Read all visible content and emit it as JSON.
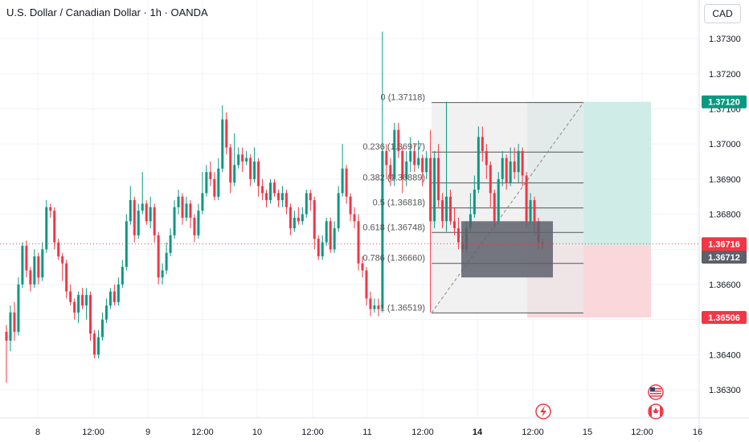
{
  "header": {
    "symbol_title": "U.S. Dollar / Canadian Dollar · 1h · OANDA",
    "currency_button": "CAD"
  },
  "colors": {
    "up": "#089981",
    "down": "#f23645",
    "target_zone": "#cfece6",
    "stop_zone": "#f9d7db",
    "fib_zone": "#ebebeb",
    "fib_line": "#555555",
    "current_price_line": "#f23645"
  },
  "icons": [
    "lightning-event-icon",
    "us-flag-icon",
    "canada-flag-icon"
  ],
  "chart_data": {
    "type": "candlestick",
    "title": "U.S. Dollar / Canadian Dollar · 1h · OANDA",
    "y_axis": {
      "ticks": [
        "1.37300",
        "1.37200",
        "1.37100",
        "1.37000",
        "1.36900",
        "1.36800",
        "1.36700",
        "1.36600",
        "1.36500",
        "1.36400",
        "1.36300"
      ],
      "range": [
        1.3622,
        1.3741
      ]
    },
    "x_axis": {
      "ticks": [
        {
          "label": "8",
          "bold": false
        },
        {
          "label": "12:00",
          "bold": false
        },
        {
          "label": "9",
          "bold": false
        },
        {
          "label": "12:00",
          "bold": false
        },
        {
          "label": "10",
          "bold": false
        },
        {
          "label": "12:00",
          "bold": false
        },
        {
          "label": "11",
          "bold": false
        },
        {
          "label": "12:00",
          "bold": false
        },
        {
          "label": "14",
          "bold": true
        },
        {
          "label": "12:00",
          "bold": false
        },
        {
          "label": "15",
          "bold": false
        },
        {
          "label": "12:00",
          "bold": false
        },
        {
          "label": "16",
          "bold": false
        }
      ]
    },
    "price_labels": [
      {
        "text": "1.37120",
        "value": 1.3712,
        "kind": "target"
      },
      {
        "text": "1.36716",
        "text2": "31:00",
        "value": 1.36716,
        "kind": "last"
      },
      {
        "text": "1.36712",
        "value": 1.36712,
        "kind": "position"
      },
      {
        "text": "1.36506",
        "value": 1.36506,
        "kind": "stop"
      }
    ],
    "fib_levels": [
      {
        "label": "0 (1.37118)",
        "value": 1.37118
      },
      {
        "label": "0.236 (1.36977)",
        "value": 1.36977
      },
      {
        "label": "0.382 (1.36889)",
        "value": 1.36889
      },
      {
        "label": "0.5 (1.36818)",
        "value": 1.36818
      },
      {
        "label": "0.618 (1.36748)",
        "value": 1.36748
      },
      {
        "label": "0.786 (1.36660)",
        "value": 1.3666
      },
      {
        "label": "1 (1.36519)",
        "value": 1.36519
      }
    ],
    "position": {
      "entry": 1.36712,
      "target": 1.3712,
      "stop": 1.36506
    },
    "last_price": 1.36716,
    "candles": [
      [
        1.36465,
        1.3644,
        1.36485,
        1.3632
      ],
      [
        1.3644,
        1.3652,
        1.3654,
        1.3641
      ],
      [
        1.3652,
        1.36465,
        1.3655,
        1.3644
      ],
      [
        1.36465,
        1.366,
        1.3662,
        1.36455
      ],
      [
        1.366,
        1.3671,
        1.3672,
        1.3659
      ],
      [
        1.3671,
        1.3664,
        1.36725,
        1.3662
      ],
      [
        1.3664,
        1.366,
        1.3665,
        1.3658
      ],
      [
        1.366,
        1.3668,
        1.367,
        1.3659
      ],
      [
        1.3668,
        1.3662,
        1.3669,
        1.366
      ],
      [
        1.3662,
        1.367,
        1.3672,
        1.3661
      ],
      [
        1.367,
        1.3682,
        1.3684,
        1.3669
      ],
      [
        1.3682,
        1.3681,
        1.3683,
        1.3679
      ],
      [
        1.3681,
        1.3672,
        1.3682,
        1.367
      ],
      [
        1.3672,
        1.3668,
        1.3673,
        1.3667
      ],
      [
        1.3668,
        1.3666,
        1.3669,
        1.3661
      ],
      [
        1.3666,
        1.3658,
        1.3667,
        1.3656
      ],
      [
        1.3658,
        1.3655,
        1.366,
        1.3654
      ],
      [
        1.3655,
        1.3652,
        1.3656,
        1.365
      ],
      [
        1.3652,
        1.3657,
        1.3658,
        1.3649
      ],
      [
        1.3657,
        1.3654,
        1.3659,
        1.3653
      ],
      [
        1.3654,
        1.3657,
        1.3659,
        1.365
      ],
      [
        1.3657,
        1.3646,
        1.3658,
        1.3644
      ],
      [
        1.3646,
        1.364,
        1.3647,
        1.3639
      ],
      [
        1.364,
        1.3645,
        1.3647,
        1.3639
      ],
      [
        1.3645,
        1.365,
        1.3652,
        1.3644
      ],
      [
        1.365,
        1.3654,
        1.3656,
        1.3649
      ],
      [
        1.3654,
        1.3658,
        1.3659,
        1.3653
      ],
      [
        1.3658,
        1.3655,
        1.366,
        1.3654
      ],
      [
        1.3655,
        1.366,
        1.3662,
        1.3654
      ],
      [
        1.366,
        1.3665,
        1.3667,
        1.3659
      ],
      [
        1.3665,
        1.3678,
        1.368,
        1.3664
      ],
      [
        1.3678,
        1.3684,
        1.3688,
        1.3677
      ],
      [
        1.3684,
        1.3674,
        1.3685,
        1.3672
      ],
      [
        1.3674,
        1.3681,
        1.3683,
        1.3673
      ],
      [
        1.3681,
        1.3683,
        1.3692,
        1.368
      ],
      [
        1.3683,
        1.3678,
        1.3684,
        1.3677
      ],
      [
        1.3678,
        1.3682,
        1.3685,
        1.3676
      ],
      [
        1.3682,
        1.3674,
        1.3683,
        1.3672
      ],
      [
        1.3674,
        1.3662,
        1.3675,
        1.366
      ],
      [
        1.3662,
        1.3664,
        1.3666,
        1.366
      ],
      [
        1.3664,
        1.3669,
        1.3672,
        1.3663
      ],
      [
        1.3669,
        1.3674,
        1.3676,
        1.3668
      ],
      [
        1.3674,
        1.3682,
        1.3684,
        1.3673
      ],
      [
        1.3682,
        1.3685,
        1.3687,
        1.368
      ],
      [
        1.3685,
        1.3679,
        1.3686,
        1.3677
      ],
      [
        1.3679,
        1.3683,
        1.3685,
        1.3678
      ],
      [
        1.3683,
        1.3679,
        1.3684,
        1.3676
      ],
      [
        1.3679,
        1.3674,
        1.368,
        1.3672
      ],
      [
        1.3674,
        1.3681,
        1.3683,
        1.3673
      ],
      [
        1.3681,
        1.3686,
        1.3692,
        1.368
      ],
      [
        1.3686,
        1.3692,
        1.3694,
        1.3685
      ],
      [
        1.3692,
        1.369,
        1.3695,
        1.3688
      ],
      [
        1.369,
        1.3685,
        1.3692,
        1.3684
      ],
      [
        1.3685,
        1.3693,
        1.3696,
        1.3684
      ],
      [
        1.3693,
        1.3707,
        1.3711,
        1.3692
      ],
      [
        1.3707,
        1.3699,
        1.3709,
        1.3697
      ],
      [
        1.3699,
        1.3689,
        1.37,
        1.3686
      ],
      [
        1.3689,
        1.3694,
        1.3703,
        1.3688
      ],
      [
        1.3694,
        1.3697,
        1.3699,
        1.3693
      ],
      [
        1.3697,
        1.3695,
        1.3699,
        1.3692
      ],
      [
        1.3695,
        1.3696,
        1.3698,
        1.3694
      ],
      [
        1.3696,
        1.369,
        1.3697,
        1.3688
      ],
      [
        1.369,
        1.3695,
        1.3699,
        1.3689
      ],
      [
        1.3695,
        1.3688,
        1.3696,
        1.3685
      ],
      [
        1.3688,
        1.3686,
        1.369,
        1.3684
      ],
      [
        1.3686,
        1.3684,
        1.3687,
        1.3682
      ],
      [
        1.3684,
        1.3689,
        1.369,
        1.3683
      ],
      [
        1.3689,
        1.3686,
        1.369,
        1.3685
      ],
      [
        1.3686,
        1.3684,
        1.3687,
        1.3682
      ],
      [
        1.3684,
        1.3686,
        1.3688,
        1.3682
      ],
      [
        1.3686,
        1.3682,
        1.3687,
        1.368
      ],
      [
        1.3682,
        1.3676,
        1.3683,
        1.3674
      ],
      [
        1.3676,
        1.3679,
        1.3681,
        1.3675
      ],
      [
        1.3679,
        1.3678,
        1.3682,
        1.3677
      ],
      [
        1.3678,
        1.368,
        1.3682,
        1.3677
      ],
      [
        1.368,
        1.3686,
        1.3687,
        1.3679
      ],
      [
        1.3686,
        1.3684,
        1.3687,
        1.3681
      ],
      [
        1.3684,
        1.3673,
        1.3685,
        1.367
      ],
      [
        1.3673,
        1.3668,
        1.3674,
        1.3667
      ],
      [
        1.3668,
        1.3672,
        1.3674,
        1.3667
      ],
      [
        1.3672,
        1.3678,
        1.3679,
        1.3671
      ],
      [
        1.3678,
        1.367,
        1.3679,
        1.3669
      ],
      [
        1.367,
        1.3676,
        1.3678,
        1.3669
      ],
      [
        1.3676,
        1.3686,
        1.3688,
        1.3675
      ],
      [
        1.3686,
        1.3693,
        1.37,
        1.3685
      ],
      [
        1.3693,
        1.3685,
        1.3694,
        1.3683
      ],
      [
        1.3685,
        1.368,
        1.3686,
        1.3678
      ],
      [
        1.368,
        1.3678,
        1.3682,
        1.3676
      ],
      [
        1.3678,
        1.3666,
        1.368,
        1.3664
      ],
      [
        1.3666,
        1.3664,
        1.3668,
        1.3662
      ],
      [
        1.3664,
        1.3656,
        1.3665,
        1.3654
      ],
      [
        1.3656,
        1.3653,
        1.3658,
        1.3651
      ],
      [
        1.3653,
        1.3654,
        1.3656,
        1.3652
      ],
      [
        1.3654,
        1.3653,
        1.3656,
        1.3651
      ],
      [
        1.3653,
        1.3698,
        1.3732,
        1.3652
      ],
      [
        1.3698,
        1.3694,
        1.37,
        1.369
      ],
      [
        1.3694,
        1.369,
        1.3696,
        1.3688
      ],
      [
        1.369,
        1.3704,
        1.3706,
        1.3688
      ],
      [
        1.3704,
        1.3698,
        1.3706,
        1.3696
      ],
      [
        1.3698,
        1.369,
        1.3699,
        1.3686
      ],
      [
        1.369,
        1.3695,
        1.3698,
        1.3688
      ],
      [
        1.3695,
        1.3698,
        1.3702,
        1.3692
      ],
      [
        1.3698,
        1.3694,
        1.37,
        1.3692
      ],
      [
        1.3694,
        1.3696,
        1.3701,
        1.3693
      ],
      [
        1.3696,
        1.3692,
        1.3697,
        1.3688
      ],
      [
        1.3692,
        1.3696,
        1.3698,
        1.369
      ],
      [
        1.3696,
        1.3678,
        1.3704,
        1.3652
      ],
      [
        1.3678,
        1.3696,
        1.3698,
        1.3676
      ],
      [
        1.3696,
        1.3684,
        1.37,
        1.3682
      ],
      [
        1.3684,
        1.3678,
        1.3686,
        1.3676
      ],
      [
        1.3678,
        1.3685,
        1.3712,
        1.3675
      ],
      [
        1.3685,
        1.3678,
        1.3687,
        1.3677
      ],
      [
        1.3678,
        1.3676,
        1.3682,
        1.3674
      ],
      [
        1.3676,
        1.3672,
        1.3679,
        1.367
      ],
      [
        1.3672,
        1.367,
        1.3674,
        1.3669
      ],
      [
        1.367,
        1.3676,
        1.3678,
        1.3669
      ],
      [
        1.3676,
        1.368,
        1.3686,
        1.3675
      ],
      [
        1.368,
        1.3687,
        1.3691,
        1.3679
      ],
      [
        1.3687,
        1.3702,
        1.3705,
        1.3686
      ],
      [
        1.3702,
        1.3698,
        1.3705,
        1.3695
      ],
      [
        1.3698,
        1.3694,
        1.37,
        1.369
      ],
      [
        1.3694,
        1.3686,
        1.3695,
        1.3682
      ],
      [
        1.3686,
        1.3678,
        1.3687,
        1.3676
      ],
      [
        1.3678,
        1.369,
        1.3692,
        1.3677
      ],
      [
        1.369,
        1.3696,
        1.3698,
        1.3688
      ],
      [
        1.3696,
        1.3689,
        1.3697,
        1.3687
      ],
      [
        1.3689,
        1.3695,
        1.3699,
        1.3688
      ],
      [
        1.3695,
        1.3692,
        1.3699,
        1.369
      ],
      [
        1.3692,
        1.3698,
        1.37,
        1.3689
      ],
      [
        1.3698,
        1.3691,
        1.3699,
        1.3688
      ],
      [
        1.3691,
        1.3678,
        1.3692,
        1.3676
      ],
      [
        1.3678,
        1.3684,
        1.3686,
        1.3677
      ],
      [
        1.3684,
        1.3678,
        1.3685,
        1.3674
      ],
      [
        1.3678,
        1.3672,
        1.3679,
        1.367
      ],
      [
        1.3672,
        1.36716,
        1.3673,
        1.367
      ]
    ]
  }
}
